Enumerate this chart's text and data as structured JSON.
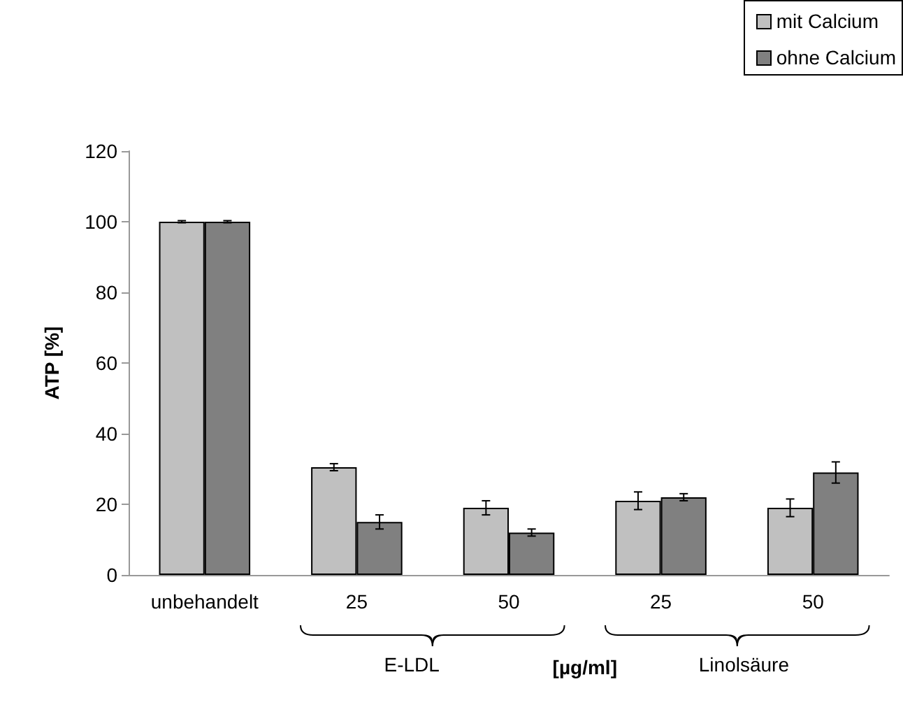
{
  "chart_data": {
    "type": "bar",
    "ylabel": "ATP [%]",
    "xlabel": "[µg/ml]",
    "categories": [
      "unbehandelt",
      "25",
      "50",
      "25",
      "50"
    ],
    "series": [
      {
        "name": "mit Calcium",
        "color": "#c0c0c0",
        "values": [
          100,
          30.5,
          19,
          21,
          19
        ],
        "errors": [
          0.3,
          1,
          2,
          2.5,
          2.5
        ]
      },
      {
        "name": "ohne Calcium",
        "color": "#808080",
        "values": [
          100,
          15,
          12,
          22,
          29
        ],
        "errors": [
          0.3,
          2,
          1,
          1,
          3
        ]
      }
    ],
    "annotations": [
      "E-LDL",
      "Linolsäure"
    ],
    "ylim": [
      0,
      120
    ],
    "yticks": [
      0,
      20,
      40,
      60,
      80,
      100,
      120
    ],
    "grid": false,
    "legend": "top right"
  }
}
